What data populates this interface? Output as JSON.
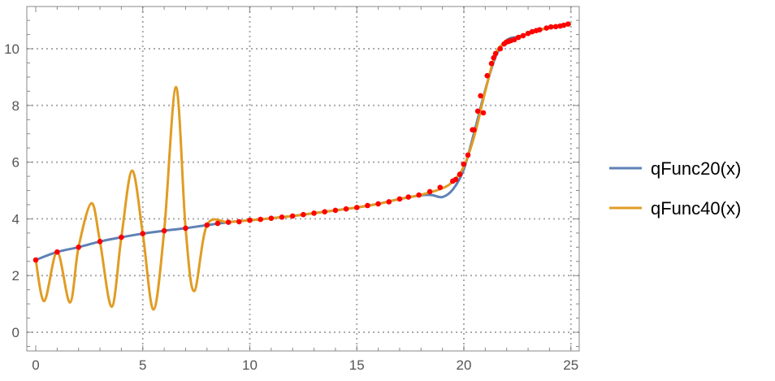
{
  "chart_data": {
    "type": "line",
    "title": "",
    "xlabel": "",
    "ylabel": "",
    "xlim": [
      -0.4,
      25.5
    ],
    "ylim": [
      -0.7,
      11.4
    ],
    "grid": true,
    "legend_position": "right",
    "x_ticks": [
      "0",
      "5",
      "10",
      "15",
      "20",
      "25"
    ],
    "y_ticks": [
      "0",
      "2",
      "4",
      "6",
      "8",
      "10"
    ],
    "series": [
      {
        "name": "qFunc20(x)",
        "color": "#5e81b5",
        "points": [
          [
            0,
            2.55
          ],
          [
            1,
            2.83
          ],
          [
            2,
            3.0
          ],
          [
            3,
            3.2
          ],
          [
            4,
            3.35
          ],
          [
            5,
            3.48
          ],
          [
            6,
            3.58
          ],
          [
            7,
            3.67
          ],
          [
            8,
            3.78
          ],
          [
            9,
            3.88
          ],
          [
            10,
            3.95
          ],
          [
            11,
            4.02
          ],
          [
            12,
            4.1
          ],
          [
            13,
            4.2
          ],
          [
            14,
            4.3
          ],
          [
            15,
            4.4
          ],
          [
            16,
            4.53
          ],
          [
            17,
            4.7
          ],
          [
            18,
            4.83
          ],
          [
            18.5,
            4.84
          ],
          [
            19,
            4.77
          ],
          [
            19.5,
            5.05
          ],
          [
            20,
            5.75
          ],
          [
            20.5,
            7.1
          ],
          [
            21,
            8.55
          ],
          [
            21.5,
            9.75
          ],
          [
            22,
            10.3
          ],
          [
            22.5,
            10.42
          ],
          [
            23,
            10.53
          ],
          [
            24,
            10.75
          ],
          [
            25,
            10.88
          ]
        ]
      },
      {
        "name": "qFunc40(x)",
        "color": "#e19c24",
        "points": [
          [
            0,
            2.55
          ],
          [
            0.4,
            1.1
          ],
          [
            1,
            2.83
          ],
          [
            1.6,
            1.05
          ],
          [
            2,
            3.0
          ],
          [
            2.6,
            4.55
          ],
          [
            3,
            3.2
          ],
          [
            3.55,
            0.9
          ],
          [
            4,
            3.35
          ],
          [
            4.5,
            5.7
          ],
          [
            5,
            3.48
          ],
          [
            5.5,
            0.8
          ],
          [
            6,
            3.58
          ],
          [
            6.55,
            8.65
          ],
          [
            7,
            3.67
          ],
          [
            7.4,
            1.45
          ],
          [
            8,
            3.78
          ],
          [
            9,
            3.88
          ],
          [
            10,
            3.95
          ],
          [
            11,
            4.02
          ],
          [
            12,
            4.1
          ],
          [
            13,
            4.2
          ],
          [
            14,
            4.3
          ],
          [
            15,
            4.4
          ],
          [
            16,
            4.53
          ],
          [
            17,
            4.7
          ],
          [
            18,
            4.85
          ],
          [
            19,
            5.08
          ],
          [
            19.5,
            5.33
          ],
          [
            20,
            5.85
          ],
          [
            20.5,
            6.95
          ],
          [
            21,
            8.5
          ],
          [
            21.5,
            9.85
          ],
          [
            22,
            10.22
          ],
          [
            23,
            10.54
          ],
          [
            24,
            10.76
          ],
          [
            25,
            10.88
          ]
        ]
      }
    ],
    "markers": {
      "color": "#ff0000",
      "points": [
        [
          0,
          2.55
        ],
        [
          1,
          2.83
        ],
        [
          2,
          3.0
        ],
        [
          3,
          3.2
        ],
        [
          4,
          3.35
        ],
        [
          5,
          3.48
        ],
        [
          6,
          3.58
        ],
        [
          7,
          3.67
        ],
        [
          8,
          3.78
        ],
        [
          8.5,
          3.84
        ],
        [
          9,
          3.88
        ],
        [
          9.5,
          3.9
        ],
        [
          10,
          3.95
        ],
        [
          10.5,
          3.98
        ],
        [
          11,
          4.02
        ],
        [
          11.5,
          4.06
        ],
        [
          12,
          4.1
        ],
        [
          12.5,
          4.15
        ],
        [
          13,
          4.2
        ],
        [
          13.5,
          4.25
        ],
        [
          14,
          4.3
        ],
        [
          14.5,
          4.35
        ],
        [
          15,
          4.4
        ],
        [
          15.5,
          4.47
        ],
        [
          16,
          4.53
        ],
        [
          16.5,
          4.6
        ],
        [
          17,
          4.7
        ],
        [
          17.41,
          4.77
        ],
        [
          17.9,
          4.84
        ],
        [
          18.41,
          4.96
        ],
        [
          18.89,
          5.11
        ],
        [
          19.48,
          5.33
        ],
        [
          19.62,
          5.39
        ],
        [
          19.81,
          5.57
        ],
        [
          19.99,
          5.93
        ],
        [
          20.19,
          6.25
        ],
        [
          20.4,
          7.14
        ],
        [
          20.47,
          7.14
        ],
        [
          20.65,
          7.8
        ],
        [
          20.78,
          8.34
        ],
        [
          20.91,
          7.74
        ],
        [
          21.09,
          9.05
        ],
        [
          21.29,
          9.48
        ],
        [
          21.39,
          9.68
        ],
        [
          21.48,
          9.83
        ],
        [
          21.7,
          10.0
        ],
        [
          21.88,
          10.17
        ],
        [
          21.98,
          10.23
        ],
        [
          22.1,
          10.26
        ],
        [
          22.2,
          10.29
        ],
        [
          22.36,
          10.32
        ],
        [
          22.55,
          10.4
        ],
        [
          22.77,
          10.46
        ],
        [
          23.0,
          10.54
        ],
        [
          23.19,
          10.6
        ],
        [
          23.38,
          10.64
        ],
        [
          23.54,
          10.67
        ],
        [
          23.86,
          10.73
        ],
        [
          24.07,
          10.77
        ],
        [
          24.29,
          10.78
        ],
        [
          24.5,
          10.8
        ],
        [
          24.67,
          10.83
        ],
        [
          24.87,
          10.87
        ]
      ]
    }
  }
}
